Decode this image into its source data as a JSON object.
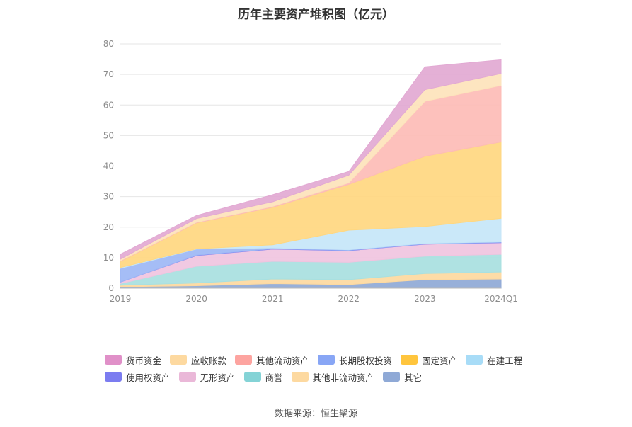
{
  "chart_data": {
    "type": "area",
    "stacked": true,
    "title": "历年主要资产堆积图（亿元）",
    "categories": [
      "2019",
      "2020",
      "2021",
      "2022",
      "2023",
      "2024Q1"
    ],
    "y_ticks": [
      "0",
      "10",
      "20",
      "30",
      "40",
      "50",
      "60",
      "70",
      "80"
    ],
    "ylim": [
      0,
      80
    ],
    "xlabel": "",
    "ylabel": "",
    "legend_position": "bottom",
    "series": [
      {
        "name": "其它",
        "color": "#8fa9d6",
        "values": [
          0.5,
          0.8,
          1.5,
          1.2,
          2.8,
          3.0
        ]
      },
      {
        "name": "其他非流动资产",
        "color": "#fdd9a0",
        "values": [
          0.5,
          0.9,
          1.5,
          1.6,
          2.0,
          2.3
        ]
      },
      {
        "name": "商誉",
        "color": "#a8e0e0",
        "values": [
          0.5,
          5.5,
          5.8,
          5.7,
          5.7,
          5.8
        ]
      },
      {
        "name": "无形资产",
        "color": "#f0c4df",
        "values": [
          0.5,
          3.5,
          4.0,
          3.8,
          3.9,
          3.8
        ]
      },
      {
        "name": "使用权资产",
        "color": "#7b7cf0",
        "values": [
          0.0,
          0.1,
          0.1,
          0.1,
          0.1,
          0.1
        ]
      },
      {
        "name": "长期股权投资",
        "color": "#9db7f5",
        "values": [
          4.5,
          2.0,
          0.3,
          0.2,
          0.2,
          0.2
        ]
      },
      {
        "name": "在建工程",
        "color": "#c6e6f8",
        "values": [
          0.3,
          0.1,
          1.0,
          6.4,
          5.5,
          7.7
        ]
      },
      {
        "name": "固定资产",
        "color": "#ffd780",
        "values": [
          2.0,
          8.5,
          12.3,
          15.0,
          23.0,
          25.0
        ]
      },
      {
        "name": "其他流动资产",
        "color": "#fdbcb6",
        "values": [
          0.2,
          0.2,
          0.3,
          0.5,
          18.0,
          18.5
        ]
      },
      {
        "name": "应收账款",
        "color": "#fde3bb",
        "values": [
          0.5,
          1.2,
          1.5,
          2.5,
          3.8,
          3.9
        ]
      },
      {
        "name": "货币资金",
        "color": "#e2a9d3",
        "values": [
          1.6,
          1.0,
          2.3,
          1.2,
          7.5,
          4.5
        ]
      }
    ]
  },
  "legend": {
    "rows": [
      [
        {
          "label": "货币资金",
          "color": "#e090c8"
        },
        {
          "label": "应收账款",
          "color": "#fdd9a0"
        },
        {
          "label": "其他流动资产",
          "color": "#fda4a0"
        },
        {
          "label": "长期股权投资",
          "color": "#88a6f5"
        },
        {
          "label": "固定资产",
          "color": "#ffc53d"
        },
        {
          "label": "在建工程",
          "color": "#a8dcf7"
        }
      ],
      [
        {
          "label": "使用权资产",
          "color": "#7b7cf0"
        },
        {
          "label": "无形资产",
          "color": "#eab8d8"
        },
        {
          "label": "商誉",
          "color": "#84d3d6"
        },
        {
          "label": "其他非流动资产",
          "color": "#fdd9a0"
        },
        {
          "label": "其它",
          "color": "#8fa9d6"
        }
      ]
    ]
  },
  "source": "数据来源：恒生聚源"
}
